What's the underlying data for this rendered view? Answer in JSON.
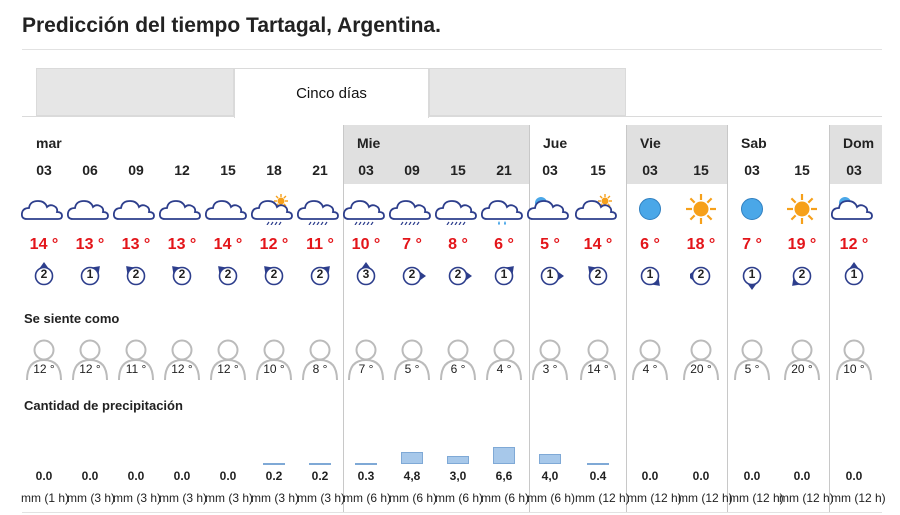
{
  "title": "Predicción del tiempo Tartagal, Argentina.",
  "tabs": [
    {
      "label": ""
    },
    {
      "label": "Cinco días"
    },
    {
      "label": ""
    }
  ],
  "days": [
    {
      "name": "mar",
      "shade": "even"
    },
    {
      "name": "Mie",
      "shade": "odd"
    },
    {
      "name": "Jue",
      "shade": "even"
    },
    {
      "name": "Vie",
      "shade": "odd"
    },
    {
      "name": "Sab",
      "shade": "even"
    },
    {
      "name": "Dom",
      "shade": "odd"
    }
  ],
  "sections": {
    "feels_like": "Se siente como",
    "precipitation": "Cantidad de precipitación"
  },
  "colors": {
    "temp": "#e3151a",
    "wind_arrow": "#2d3e8c",
    "bar": "#a7c8ea",
    "sun": "#f6a01a",
    "moon": "#4aa7e8"
  },
  "slots": [
    {
      "hour": "03",
      "icon": "cloud",
      "temp": "14 °",
      "wind": {
        "speed": "2",
        "dir": "N"
      },
      "feels": "12 °",
      "precip": "0.0",
      "unit": "mm (1 h)",
      "bar": 0
    },
    {
      "hour": "06",
      "icon": "cloud",
      "temp": "13 °",
      "wind": {
        "speed": "1",
        "dir": "NE"
      },
      "feels": "12 °",
      "precip": "0.0",
      "unit": "mm (3 h)",
      "bar": 0
    },
    {
      "hour": "09",
      "icon": "cloud",
      "temp": "13 °",
      "wind": {
        "speed": "2",
        "dir": "NW"
      },
      "feels": "11 °",
      "precip": "0.0",
      "unit": "mm (3 h)",
      "bar": 0
    },
    {
      "hour": "12",
      "icon": "cloud",
      "temp": "13 °",
      "wind": {
        "speed": "2",
        "dir": "NW"
      },
      "feels": "12 °",
      "precip": "0.0",
      "unit": "mm (3 h)",
      "bar": 0
    },
    {
      "hour": "15",
      "icon": "cloud",
      "temp": "14 °",
      "wind": {
        "speed": "2",
        "dir": "NW"
      },
      "feels": "12 °",
      "precip": "0.0",
      "unit": "mm (3 h)",
      "bar": 0
    },
    {
      "hour": "18",
      "icon": "sun-cloud-rain",
      "temp": "12 °",
      "wind": {
        "speed": "2",
        "dir": "NW"
      },
      "feels": "10 °",
      "precip": "0.2",
      "unit": "mm (3 h)",
      "bar": 0.2
    },
    {
      "hour": "21",
      "icon": "cloud-rain",
      "temp": "11 °",
      "wind": {
        "speed": "2",
        "dir": "NE"
      },
      "feels": "8 °",
      "precip": "0.2",
      "unit": "mm (3 h)",
      "bar": 0.2
    },
    {
      "hour": "03",
      "icon": "cloud-rain",
      "temp": "10 °",
      "wind": {
        "speed": "3",
        "dir": "N"
      },
      "feels": "7 °",
      "precip": "0.3",
      "unit": "mm (6 h)",
      "bar": 0.3
    },
    {
      "hour": "09",
      "icon": "cloud-rain",
      "temp": "7 °",
      "wind": {
        "speed": "2",
        "dir": "E"
      },
      "feels": "5 °",
      "precip": "4,8",
      "unit": "mm (6 h)",
      "bar": 4.8
    },
    {
      "hour": "15",
      "icon": "cloud-rain",
      "temp": "8 °",
      "wind": {
        "speed": "2",
        "dir": "E"
      },
      "feels": "6 °",
      "precip": "3,0",
      "unit": "mm (6 h)",
      "bar": 3.0
    },
    {
      "hour": "21",
      "icon": "cloud-drops",
      "temp": "6 °",
      "wind": {
        "speed": "1",
        "dir": "NE"
      },
      "feels": "4 °",
      "precip": "6,6",
      "unit": "mm (6 h)",
      "bar": 6.6
    },
    {
      "hour": "03",
      "icon": "moon-cloud",
      "temp": "5 °",
      "wind": {
        "speed": "1",
        "dir": "E"
      },
      "feels": "3 °",
      "precip": "4,0",
      "unit": "mm (6 h)",
      "bar": 4.0
    },
    {
      "hour": "15",
      "icon": "sun-cloud",
      "temp": "14 °",
      "wind": {
        "speed": "2",
        "dir": "NW"
      },
      "feels": "14 °",
      "precip": "0.4",
      "unit": "mm (12 h)",
      "bar": 0.4
    },
    {
      "hour": "03",
      "icon": "moon",
      "temp": "6 °",
      "wind": {
        "speed": "1",
        "dir": "SE"
      },
      "feels": "4 °",
      "precip": "0.0",
      "unit": "mm (12 h)",
      "bar": 0
    },
    {
      "hour": "15",
      "icon": "sun",
      "temp": "18 °",
      "wind": {
        "speed": "2",
        "dir": "W"
      },
      "feels": "20 °",
      "precip": "0.0",
      "unit": "mm (12 h)",
      "bar": 0
    },
    {
      "hour": "03",
      "icon": "moon",
      "temp": "7 °",
      "wind": {
        "speed": "1",
        "dir": "S"
      },
      "feels": "5 °",
      "precip": "0.0",
      "unit": "mm (12 h)",
      "bar": 0
    },
    {
      "hour": "15",
      "icon": "sun",
      "temp": "19 °",
      "wind": {
        "speed": "2",
        "dir": "SW"
      },
      "feels": "20 °",
      "precip": "0.0",
      "unit": "mm (12 h)",
      "bar": 0
    },
    {
      "hour": "03",
      "icon": "moon-cloud",
      "temp": "12 °",
      "wind": {
        "speed": "1",
        "dir": "N"
      },
      "feels": "10 °",
      "precip": "0.0",
      "unit": "mm (12 h)",
      "bar": 0
    }
  ]
}
